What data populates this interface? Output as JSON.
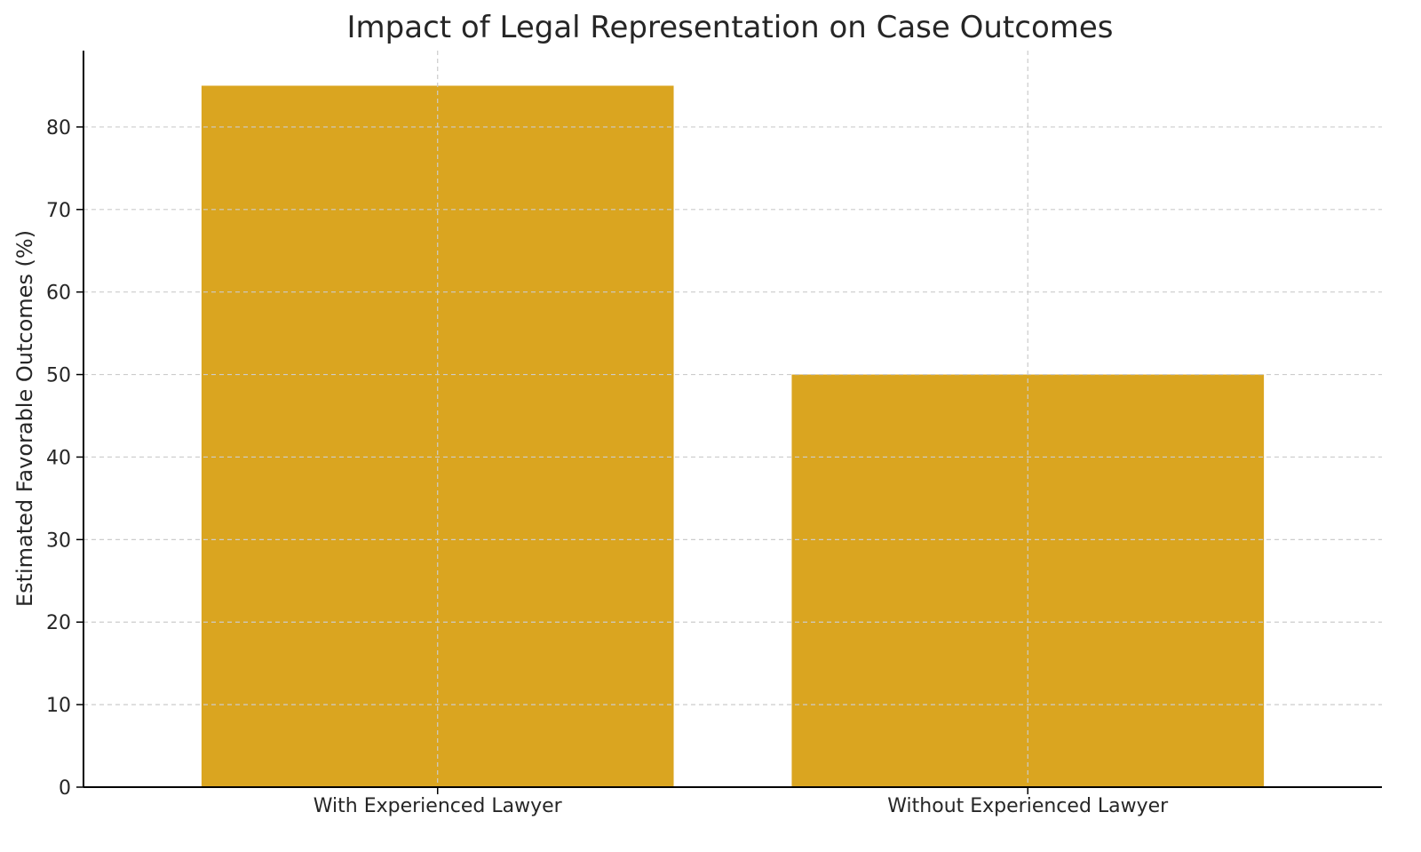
{
  "chart_data": {
    "type": "bar",
    "title": "Impact of Legal Representation on Case Outcomes",
    "xlabel": "",
    "ylabel": "Estimated Favorable Outcomes (%)",
    "categories": [
      "With Experienced Lawyer",
      "Without Experienced Lawyer"
    ],
    "values": [
      85,
      50
    ],
    "ylim": [
      0,
      89.25
    ],
    "yticks": [
      0,
      10,
      20,
      30,
      40,
      50,
      60,
      70,
      80
    ],
    "grid": true,
    "legend": "none",
    "bar_color": "#DAA520"
  }
}
